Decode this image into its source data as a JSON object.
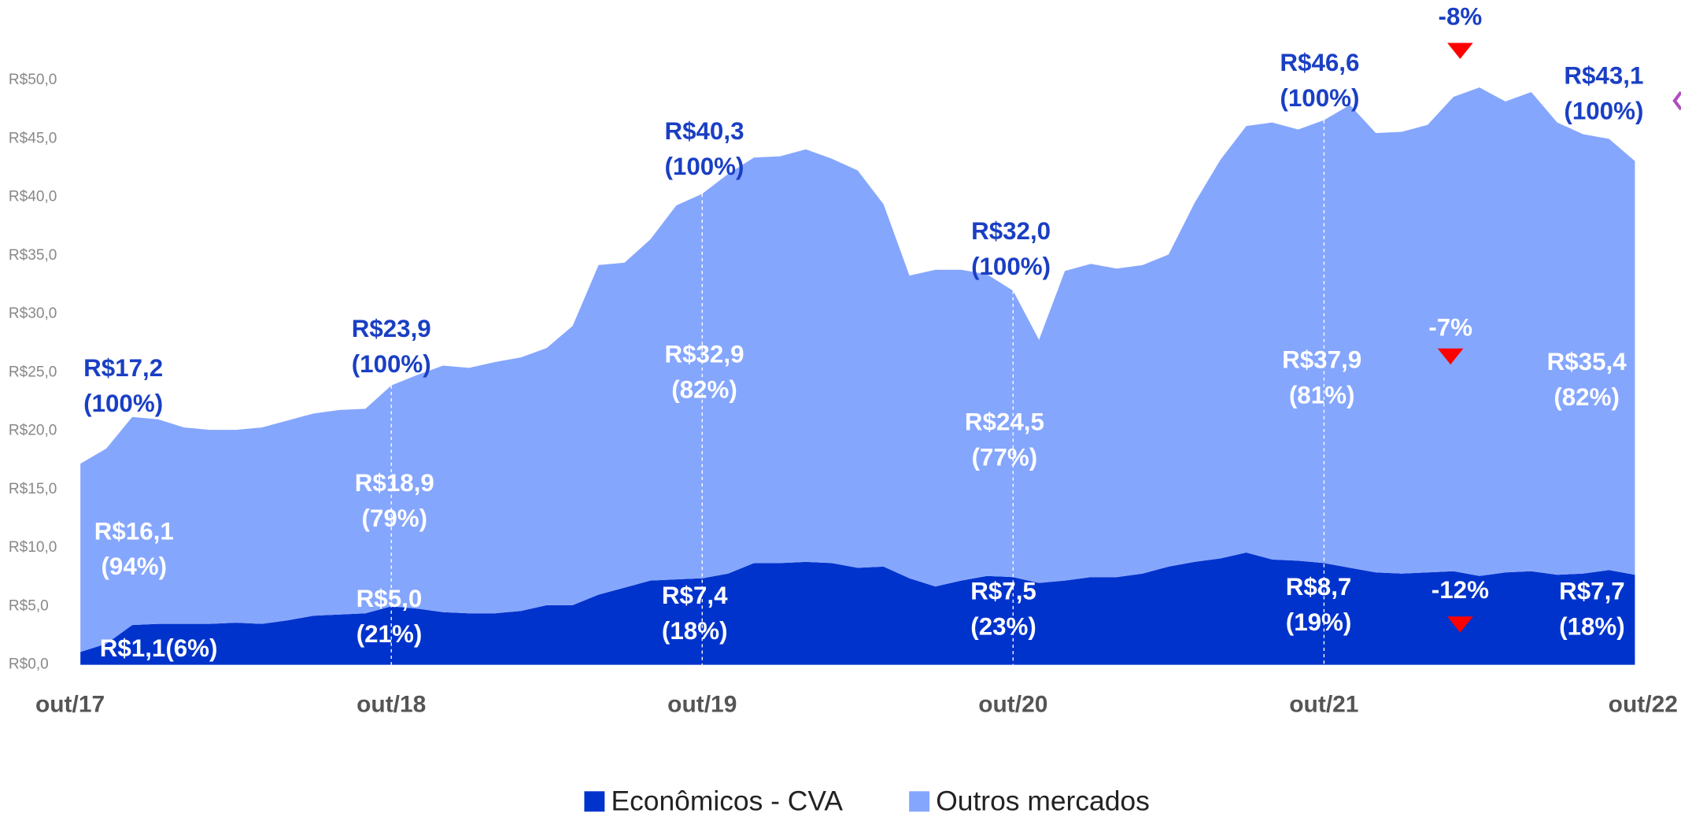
{
  "chart_data": {
    "type": "stacked-area",
    "categories": [
      "out/17",
      null,
      null,
      null,
      null,
      null,
      null,
      null,
      null,
      null,
      null,
      null,
      "out/18",
      null,
      null,
      null,
      null,
      null,
      null,
      null,
      null,
      null,
      null,
      null,
      "out/19",
      null,
      null,
      null,
      null,
      null,
      null,
      null,
      null,
      null,
      null,
      null,
      "out/20",
      null,
      null,
      null,
      null,
      null,
      null,
      null,
      null,
      null,
      null,
      null,
      "out/21",
      null,
      null,
      null,
      null,
      null,
      null,
      null,
      null,
      null,
      null,
      null,
      "out/22"
    ],
    "series": [
      {
        "name": "Econômicos - CVA",
        "color": "#0033cc",
        "values": [
          1.1,
          1.8,
          3.4,
          3.5,
          3.5,
          3.5,
          3.6,
          3.5,
          3.8,
          4.2,
          4.3,
          4.4,
          5.0,
          4.8,
          4.5,
          4.4,
          4.4,
          4.6,
          5.1,
          5.1,
          6.0,
          6.6,
          7.2,
          7.3,
          7.4,
          7.8,
          8.7,
          8.7,
          8.8,
          8.7,
          8.3,
          8.4,
          7.4,
          6.7,
          7.2,
          7.6,
          7.5,
          7.0,
          7.2,
          7.5,
          7.5,
          7.8,
          8.4,
          8.8,
          9.1,
          9.6,
          9.0,
          8.9,
          8.7,
          8.3,
          7.9,
          7.8,
          7.9,
          8.0,
          7.6,
          7.9,
          8.0,
          7.7,
          7.8,
          8.1,
          7.7
        ]
      },
      {
        "name": "Outros mercados",
        "color": "#85a6fd",
        "values": [
          16.1,
          16.7,
          17.8,
          17.5,
          16.8,
          16.6,
          16.5,
          16.8,
          17.1,
          17.3,
          17.5,
          17.5,
          18.9,
          20.0,
          21.1,
          21.0,
          21.5,
          21.7,
          22.0,
          23.9,
          28.2,
          27.8,
          29.2,
          32.0,
          32.9,
          34.2,
          34.7,
          34.8,
          35.3,
          34.6,
          34.0,
          31.0,
          25.9,
          27.1,
          26.6,
          25.8,
          24.5,
          20.8,
          26.5,
          26.8,
          26.4,
          26.4,
          26.7,
          30.7,
          34.1,
          36.5,
          37.4,
          36.9,
          37.9,
          39.6,
          37.6,
          37.8,
          38.3,
          40.6,
          41.8,
          40.3,
          41.0,
          38.7,
          37.6,
          36.9,
          35.4
        ]
      }
    ],
    "ylim": [
      0,
      50
    ],
    "yticks": [
      {
        "value": 0,
        "label": "R$0,0"
      },
      {
        "value": 5,
        "label": "R$5,0"
      },
      {
        "value": 10,
        "label": "R$10,0"
      },
      {
        "value": 15,
        "label": "R$15,0"
      },
      {
        "value": 20,
        "label": "R$20,0"
      },
      {
        "value": 25,
        "label": "R$25,0"
      },
      {
        "value": 30,
        "label": "R$30,0"
      },
      {
        "value": 35,
        "label": "R$35,0"
      },
      {
        "value": 40,
        "label": "R$40,0"
      },
      {
        "value": 45,
        "label": "R$45,0"
      },
      {
        "value": 50,
        "label": "R$50,0"
      }
    ],
    "total_labels": [
      [
        "R$17,2",
        "(100%)"
      ],
      [
        "R$23,9",
        "(100%)"
      ],
      [
        "R$40,3",
        "(100%)"
      ],
      [
        "R$32,0",
        "(100%)"
      ],
      [
        "R$46,6",
        "(100%)"
      ],
      [
        "R$43,1",
        "(100%)"
      ]
    ],
    "outros_labels": [
      [
        "R$16,1",
        "(94%)"
      ],
      [
        "R$18,9",
        "(79%)"
      ],
      [
        "R$32,9",
        "(82%)"
      ],
      [
        "R$24,5",
        "(77%)"
      ],
      [
        "R$37,9",
        "(81%)"
      ],
      [
        "R$35,4",
        "(82%)"
      ]
    ],
    "cva_labels": [
      [
        "R$1,1(6%)"
      ],
      [
        "R$5,0",
        "(21%)"
      ],
      [
        "R$7,4",
        "(18%)"
      ],
      [
        "R$7,5",
        "(23%)"
      ],
      [
        "R$8,7",
        "(19%)"
      ],
      [
        "R$7,7",
        "(18%)"
      ]
    ],
    "changes": [
      "-8%",
      "-7%",
      "-12%"
    ]
  }
}
